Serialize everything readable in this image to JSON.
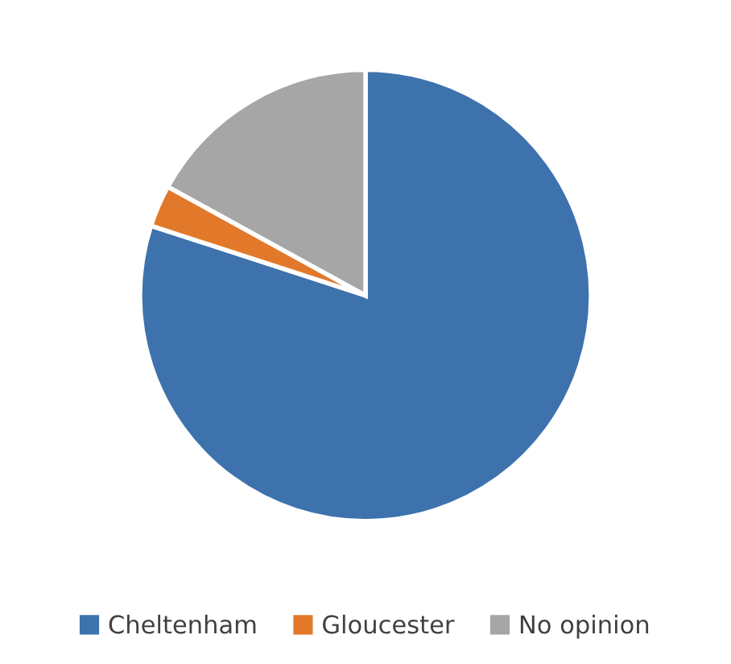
{
  "chart_data": {
    "type": "pie",
    "categories": [
      "Cheltenham",
      "Gloucester",
      "No opinion"
    ],
    "values": [
      80,
      3,
      17
    ],
    "colors": [
      "#3d72ad",
      "#e2792a",
      "#a6a6a6"
    ],
    "legend": "bottom"
  }
}
